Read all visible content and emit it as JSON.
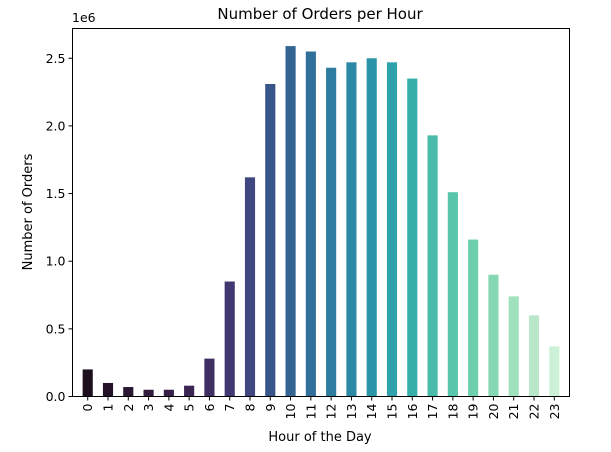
{
  "chart_data": {
    "type": "bar",
    "title": "Number of Orders per Hour",
    "xlabel": "Hour of the Day",
    "ylabel": "Number of Orders",
    "y_offset_label": "1e6",
    "ylim": [
      0,
      2.72
    ],
    "yticks": [
      0.0,
      0.5,
      1.0,
      1.5,
      2.0,
      2.5
    ],
    "ytick_labels": [
      "0.0",
      "0.5",
      "1.0",
      "1.5",
      "2.0",
      "2.5"
    ],
    "categories": [
      "0",
      "1",
      "2",
      "3",
      "4",
      "5",
      "6",
      "7",
      "8",
      "9",
      "10",
      "11",
      "12",
      "13",
      "14",
      "15",
      "16",
      "17",
      "18",
      "19",
      "20",
      "21",
      "22",
      "23"
    ],
    "values": [
      0.2,
      0.1,
      0.07,
      0.05,
      0.05,
      0.08,
      0.28,
      0.85,
      1.62,
      2.31,
      2.59,
      2.55,
      2.43,
      2.47,
      2.5,
      2.47,
      2.35,
      1.93,
      1.51,
      1.16,
      0.9,
      0.74,
      0.6,
      0.37
    ],
    "units": "millions of orders",
    "colormap": "mako-like (dark purple to light green)",
    "colors": [
      "#1e0f1f",
      "#241328",
      "#2b1832",
      "#311c3d",
      "#362047",
      "#3b2653",
      "#3f2f62",
      "#413871",
      "#3f4680",
      "#38558a",
      "#336493",
      "#30709a",
      "#2d7ca0",
      "#2b89a5",
      "#2a95a8",
      "#2ea2aa",
      "#37afa9",
      "#48bbaa",
      "#58c6aa",
      "#6dd0ac",
      "#85d8b2",
      "#9fe0bd",
      "#b8e8c9",
      "#cdf0d8"
    ],
    "grid": false,
    "legend": "none"
  }
}
